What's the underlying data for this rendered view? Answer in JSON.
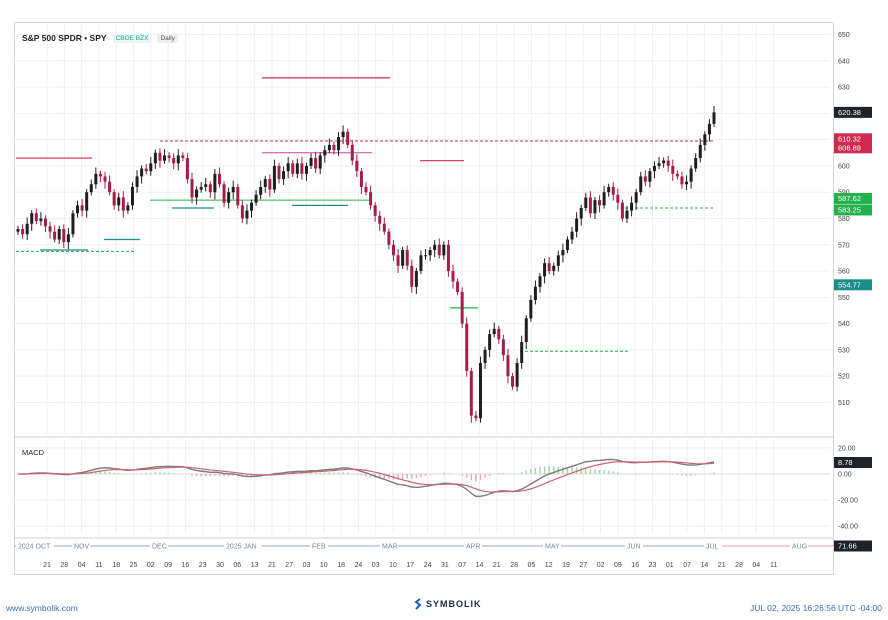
{
  "header": {
    "symbol": "S&P 500 SPDR • SPY",
    "exchange": "CBOE BZX",
    "period": "Daily"
  },
  "macd_label": "MACD",
  "footer": {
    "website": "www.symbolik.com",
    "brand": "SYMBOLIK",
    "timestamp": "JUL 02, 2025 16:26:56 UTC -04:00"
  },
  "colors": {
    "up": "#1e1e1e",
    "down": "#a51e45",
    "accent_red": "#d02b4f",
    "green": "#22b14c",
    "teal": "#1a8f8a",
    "grid": "#efefef"
  },
  "chart_data": [
    {
      "type": "candlestick",
      "y_ticks": [
        650,
        640,
        630,
        620,
        610,
        600,
        590,
        580,
        570,
        560,
        550,
        540,
        530,
        520,
        510
      ],
      "ylim": [
        498,
        654
      ],
      "price_labels": [
        {
          "value": 620.38,
          "text": "620.38",
          "color": "#1f2329"
        },
        {
          "value": 610.32,
          "text": "610.32",
          "color": "#d02b4f"
        },
        {
          "value": 606.89,
          "text": "606.89",
          "color": "#d02b4f"
        },
        {
          "value": 587.62,
          "text": "587.62",
          "color": "#22b14c"
        },
        {
          "value": 583.25,
          "text": "583.25",
          "color": "#22b14c"
        },
        {
          "value": 554.77,
          "text": "554.77",
          "color": "#1a8f8a"
        }
      ],
      "closes": [
        576,
        574,
        578,
        582,
        579,
        580,
        577,
        575,
        572,
        576,
        571,
        574,
        582,
        585,
        583,
        590,
        593,
        597,
        596,
        594,
        590,
        585,
        588,
        583,
        585,
        592,
        596,
        599,
        598,
        601,
        605,
        602,
        604,
        603,
        601,
        604,
        603,
        595,
        588,
        591,
        592,
        593,
        590,
        597,
        593,
        586,
        590,
        592,
        585,
        580,
        583,
        586,
        589,
        592,
        595,
        591,
        600,
        595,
        598,
        601,
        597,
        601,
        597,
        600,
        603,
        599,
        604,
        606,
        608,
        606,
        611,
        613,
        608,
        602,
        598,
        592,
        590,
        585,
        581,
        578,
        575,
        570,
        566,
        562,
        568,
        562,
        554,
        560,
        566,
        566,
        568,
        570,
        566,
        570,
        560,
        556,
        552,
        540,
        522,
        505,
        504,
        525,
        530,
        536,
        538,
        534,
        528,
        520,
        516,
        525,
        533,
        542,
        549,
        554,
        558,
        563,
        560,
        562,
        566,
        568,
        572,
        575,
        580,
        584,
        588,
        582,
        587,
        585,
        590,
        592,
        589,
        586,
        580,
        583,
        586,
        590,
        596,
        594,
        598,
        600,
        601,
        602,
        600,
        597,
        596,
        593,
        594,
        599,
        603,
        608,
        612,
        616,
        620.38
      ],
      "x_ticks": [
        "21",
        "28",
        "04",
        "11",
        "18",
        "25",
        "02",
        "09",
        "16",
        "23",
        "30",
        "06",
        "13",
        "21",
        "27",
        "03",
        "10",
        "18",
        "24",
        "03",
        "10",
        "17",
        "24",
        "31",
        "07",
        "14",
        "21",
        "28",
        "05",
        "12",
        "19",
        "27",
        "02",
        "09",
        "16",
        "23",
        "01",
        "07",
        "14",
        "21",
        "28",
        "04",
        "11"
      ],
      "month_labels": [
        "2024 OCT",
        "NOV",
        "DEC",
        "2025 JAN",
        "FEB",
        "MAR",
        "APR",
        "MAY",
        "JUN",
        "JUL",
        "AUG"
      ]
    },
    {
      "type": "line",
      "title": "MACD",
      "y_ticks": [
        20.0,
        0.0,
        -20.0,
        -40.0
      ],
      "ylim": [
        -46,
        26
      ],
      "value_label": "8.78",
      "x_value_label": "71.66"
    }
  ]
}
